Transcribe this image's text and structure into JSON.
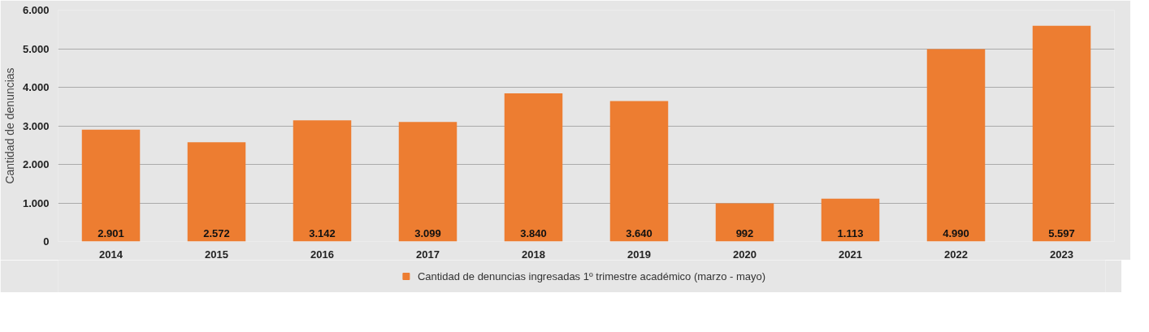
{
  "chart_data": {
    "type": "bar",
    "ylabel": "Cantidad de denuncias",
    "categories": [
      "2014",
      "2015",
      "2016",
      "2017",
      "2018",
      "2019",
      "2020",
      "2021",
      "2022",
      "2023"
    ],
    "series": [
      {
        "name": "Cantidad de denuncias ingresadas 1º trimestre académico (marzo - mayo)",
        "color": "#ed7d31",
        "values": [
          2901,
          2572,
          3142,
          3099,
          3840,
          3640,
          992,
          1113,
          4990,
          5597
        ]
      }
    ],
    "value_labels": [
      "2.901",
      "2.572",
      "3.142",
      "3.099",
      "3.840",
      "3.640",
      "992",
      "1.113",
      "4.990",
      "5.597"
    ],
    "ylim": [
      0,
      6000
    ],
    "yticks": [
      0,
      {
        "value": 1000,
        "label": "1.000"
      },
      {
        "value": 2000,
        "label": "2.000"
      },
      {
        "value": 3000,
        "label": "3.000"
      },
      {
        "value": 4000,
        "label": "4.000"
      },
      {
        "value": 5000,
        "label": "5.000"
      },
      {
        "value": 6000,
        "label": "6.000"
      }
    ],
    "grid": "y",
    "legend": "bottom"
  }
}
